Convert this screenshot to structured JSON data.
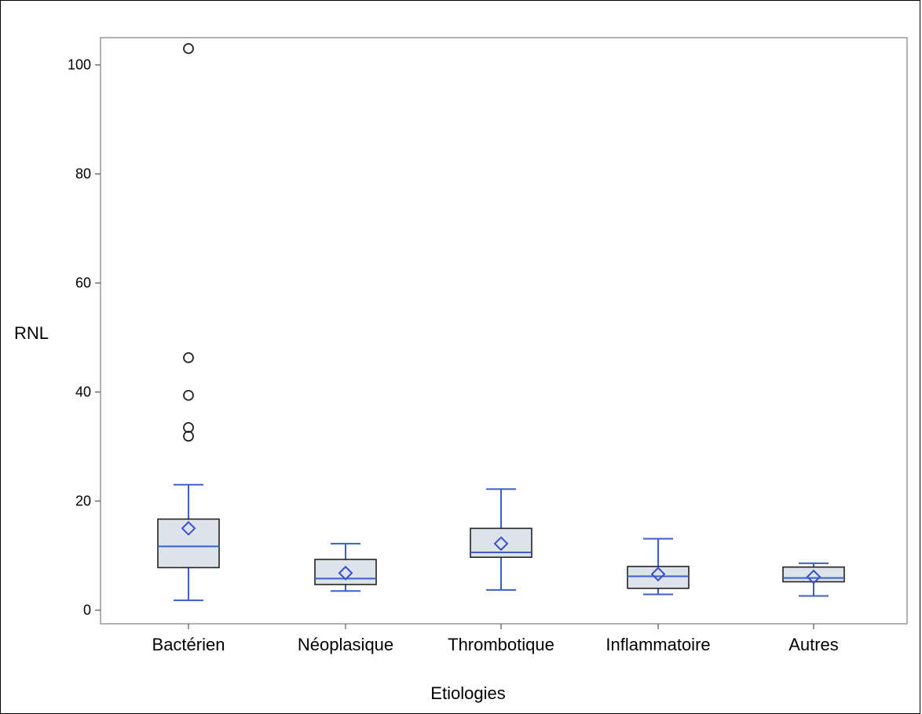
{
  "chart_data": {
    "type": "boxplot",
    "title": "",
    "xlabel": "Etiologies",
    "ylabel": "RNL",
    "ylim": [
      -2.5,
      105
    ],
    "yticks": [
      0,
      20,
      40,
      60,
      80,
      100
    ],
    "grid": false,
    "colors": {
      "box_fill": "#dde3ea",
      "box_edge": "#222222",
      "median": "#3a5fcd",
      "whisker": "#3a5fcd",
      "mean_marker": "#3a4fcd",
      "outlier": "#222222",
      "plot_border": "#999999"
    },
    "categories": [
      "Bactérien",
      "Néoplasique",
      "Thrombotique",
      "Inflammatoire",
      "Autres"
    ],
    "boxes": [
      {
        "category": "Bactérien",
        "whisker_low": 1.8,
        "q1": 7.8,
        "median": 11.7,
        "q3": 16.7,
        "whisker_high": 23.0,
        "mean": 15.0,
        "outliers": [
          103.0,
          46.3,
          39.4,
          33.5,
          31.9
        ]
      },
      {
        "category": "Néoplasique",
        "whisker_low": 3.5,
        "q1": 4.7,
        "median": 5.8,
        "q3": 9.3,
        "whisker_high": 12.2,
        "mean": 6.8,
        "outliers": []
      },
      {
        "category": "Thrombotique",
        "whisker_low": 3.7,
        "q1": 9.7,
        "median": 10.6,
        "q3": 15.0,
        "whisker_high": 22.2,
        "mean": 12.2,
        "outliers": []
      },
      {
        "category": "Inflammatoire",
        "whisker_low": 2.9,
        "q1": 4.0,
        "median": 6.2,
        "q3": 8.0,
        "whisker_high": 13.1,
        "mean": 6.6,
        "outliers": []
      },
      {
        "category": "Autres",
        "whisker_low": 2.6,
        "q1": 5.2,
        "median": 5.9,
        "q3": 7.9,
        "whisker_high": 8.6,
        "mean": 6.1,
        "outliers": []
      }
    ]
  }
}
